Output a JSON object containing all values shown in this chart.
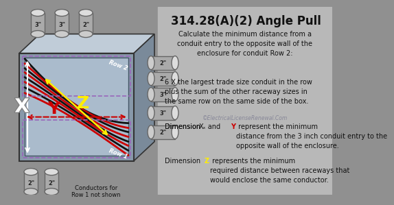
{
  "title": "314.28(A)(2) Angle Pull",
  "title_fontsize": 12,
  "bg_left_color": "#909090",
  "bg_right_color": "#b8b8b8",
  "box_face_color": "#8899aa",
  "box_top_color": "#aabbcc",
  "box_right_color": "#6677888",
  "box_inner_color": "#9aabb8",
  "box_edge_color": "#333333",
  "text_color": "#111111",
  "copyright_color": "#888899",
  "X_color": "#ffffff",
  "Y_color": "#cc0000",
  "Z_color": "#ffee00",
  "dashed_color": "#9966bb",
  "wire_colors": [
    "#111111",
    "#111111",
    "#cc0000",
    "#111111",
    "#cc0000",
    "#111111",
    "#cc0000",
    "#cc0000",
    "#111111"
  ],
  "conduit_body": "#aaaaaa",
  "conduit_top": "#cccccc",
  "conduit_ring": "#888888",
  "row2_label": "Row 2",
  "row1_label": "Row 1",
  "top_conduits": [
    "3\"",
    "3\"",
    "2\""
  ],
  "right_conduits": [
    "2\"",
    "2\"",
    "3\"",
    "3\"",
    "2\""
  ],
  "bottom_conduits": [
    "2\"",
    "2\""
  ],
  "right_text_1": "Calculate the minimum distance from a\nconduit entry to the opposite wall of the\nenclosure for conduit Row 2:",
  "right_text_2": "6 X the largest trade size conduit in the row\nplus the sum of the other raceway sizes in\nthe same row on the same side of the box.",
  "right_text_3_pre": "Dimension ",
  "right_text_3_X": "X",
  "right_text_3_mid": " and ",
  "right_text_3_Y": "Y",
  "right_text_3_post": " represent the minimum\ndistance from the 3 inch conduit entry to the\nopposite wall of the enclosure.",
  "right_text_4_pre": "Dimension ",
  "right_text_4_Z": "Z",
  "right_text_4_post": " represents the minimum\nrequired distance between raceways that\nwould enclose the same conductor.",
  "copyright": "©ElectricalLicenseRenewal.Com",
  "conductors_label": "Conductors for\nRow 1 not shown"
}
